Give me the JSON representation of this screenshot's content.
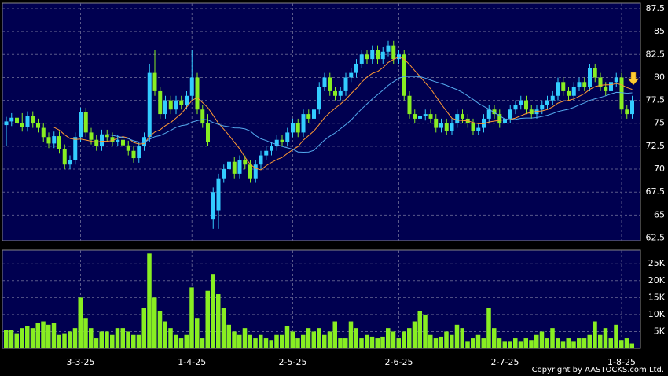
{
  "chart_data": {
    "type": "candlestick",
    "categories": [
      null,
      null,
      null,
      null,
      null,
      null,
      null,
      null,
      null,
      null,
      null,
      null,
      null,
      null,
      "3-3-25",
      null,
      null,
      null,
      null,
      null,
      null,
      null,
      null,
      null,
      null,
      null,
      null,
      null,
      null,
      null,
      null,
      null,
      null,
      null,
      null,
      "1-4-25",
      null,
      null,
      null,
      null,
      null,
      null,
      null,
      null,
      null,
      null,
      null,
      null,
      null,
      null,
      null,
      null,
      null,
      null,
      "2-5-25",
      null,
      null,
      null,
      null,
      null,
      null,
      null,
      null,
      null,
      null,
      null,
      null,
      null,
      null,
      null,
      null,
      null,
      null,
      null,
      "2-6-25",
      null,
      null,
      null,
      null,
      null,
      null,
      null,
      null,
      null,
      null,
      null,
      null,
      null,
      null,
      null,
      null,
      null,
      null,
      null,
      "2-7-25",
      null,
      null,
      null,
      null,
      null,
      null,
      null,
      null,
      null,
      null,
      null,
      null,
      null,
      null,
      null,
      null,
      null,
      null,
      null,
      null,
      null,
      "1-8-25",
      null,
      null
    ],
    "open": [
      74.8,
      75.2,
      75.6,
      75.0,
      74.6,
      75.8,
      75.0,
      74.5,
      73.5,
      72.8,
      73.6,
      72.2,
      70.5,
      71.0,
      73.5,
      76.2,
      74.0,
      73.2,
      72.5,
      73.8,
      73.5,
      73.0,
      73.2,
      72.6,
      72.0,
      71.2,
      72.5,
      73.5,
      80.5,
      78.5,
      76.0,
      77.5,
      76.5,
      77.5,
      77.0,
      78.0,
      80.0,
      76.5,
      75.0,
      64.5,
      65.5,
      69.0,
      70.0,
      70.8,
      69.5,
      71.0,
      70.5,
      69.0,
      70.5,
      71.5,
      72.0,
      72.5,
      73.2,
      73.0,
      74.0,
      75.0,
      74.0,
      76.0,
      75.5,
      76.5,
      79.0,
      80.0,
      78.5,
      78.0,
      78.5,
      80.0,
      80.5,
      81.5,
      82.5,
      82.0,
      83.0,
      82.0,
      82.8,
      83.5,
      82.0,
      82.5,
      78.0,
      76.0,
      75.5,
      75.8,
      76.0,
      75.5,
      74.5,
      75.0,
      74.2,
      75.0,
      76.0,
      75.5,
      75.0,
      74.2,
      74.5,
      75.5,
      76.5,
      76.0,
      75.0,
      75.5,
      76.5,
      77.0,
      77.5,
      76.5,
      76.0,
      76.5,
      77.0,
      77.5,
      78.0,
      79.5,
      78.5,
      78.0,
      79.0,
      79.5,
      79.0,
      81.0,
      80.0,
      79.0,
      78.5,
      79.5,
      80.0,
      76.5,
      76.0
    ],
    "high": [
      75.7,
      76.1,
      76.1,
      76.1,
      76.3,
      76.3,
      75.5,
      75.0,
      74.0,
      74.1,
      74.1,
      72.7,
      71.5,
      74.0,
      76.7,
      76.7,
      74.5,
      73.7,
      74.3,
      74.3,
      74.0,
      73.7,
      73.7,
      73.1,
      72.5,
      73.0,
      74.0,
      81.5,
      83.0,
      79.0,
      78.0,
      78.0,
      78.0,
      78.0,
      78.5,
      83.0,
      80.5,
      77.0,
      76.0,
      68.0,
      69.5,
      70.5,
      71.3,
      71.3,
      71.5,
      71.5,
      71.0,
      71.0,
      72.0,
      72.5,
      73.0,
      73.7,
      73.7,
      74.5,
      75.5,
      75.5,
      76.5,
      76.5,
      77.0,
      79.5,
      80.5,
      80.5,
      79.0,
      79.0,
      80.5,
      81.0,
      82.0,
      83.0,
      83.0,
      83.5,
      83.5,
      83.3,
      84.0,
      84.0,
      83.0,
      83.0,
      78.5,
      76.5,
      76.3,
      76.5,
      76.5,
      76.0,
      75.5,
      75.5,
      75.5,
      76.5,
      76.5,
      76.0,
      75.5,
      75.0,
      76.0,
      77.0,
      77.0,
      76.5,
      76.0,
      77.0,
      77.5,
      78.0,
      78.0,
      77.0,
      77.0,
      77.5,
      78.0,
      78.5,
      80.0,
      80.0,
      79.0,
      79.5,
      80.0,
      80.0,
      81.5,
      81.5,
      80.5,
      79.5,
      80.0,
      80.5,
      80.5,
      77.0,
      78.0
    ],
    "low": [
      72.5,
      74.7,
      74.5,
      74.1,
      74.1,
      74.5,
      74.0,
      73.0,
      72.3,
      72.3,
      71.7,
      70.0,
      70.0,
      70.5,
      73.0,
      73.5,
      72.7,
      72.0,
      72.0,
      73.0,
      72.5,
      72.5,
      72.1,
      71.5,
      70.7,
      70.7,
      72.0,
      73.0,
      78.0,
      75.5,
      75.5,
      76.0,
      76.0,
      76.5,
      76.5,
      77.5,
      76.0,
      74.5,
      72.5,
      63.5,
      63.5,
      68.5,
      69.5,
      69.0,
      69.0,
      70.0,
      68.5,
      68.5,
      70.0,
      71.0,
      71.5,
      72.0,
      72.5,
      72.5,
      73.5,
      73.5,
      73.5,
      75.0,
      75.0,
      76.0,
      78.5,
      78.0,
      77.5,
      77.5,
      78.0,
      79.5,
      80.0,
      81.0,
      81.5,
      81.5,
      81.5,
      81.5,
      82.3,
      81.5,
      81.5,
      77.5,
      75.5,
      75.0,
      75.0,
      75.3,
      75.0,
      74.0,
      74.0,
      73.7,
      73.7,
      74.5,
      75.0,
      74.5,
      73.7,
      73.7,
      74.0,
      75.0,
      75.5,
      74.5,
      74.5,
      75.0,
      76.0,
      76.5,
      76.0,
      75.5,
      75.5,
      76.0,
      76.5,
      77.0,
      77.5,
      78.0,
      77.5,
      77.5,
      78.5,
      78.5,
      78.5,
      79.5,
      78.5,
      78.0,
      78.0,
      79.0,
      76.0,
      75.5,
      75.5
    ],
    "close": [
      75.2,
      75.6,
      75.0,
      74.6,
      75.8,
      75.0,
      74.5,
      73.5,
      72.8,
      73.6,
      72.2,
      70.5,
      71.0,
      73.5,
      76.2,
      74.0,
      73.2,
      72.5,
      73.8,
      73.5,
      73.0,
      73.2,
      72.6,
      72.0,
      71.2,
      72.5,
      73.5,
      80.5,
      78.5,
      76.0,
      77.5,
      76.5,
      77.5,
      77.0,
      78.0,
      80.0,
      76.5,
      75.0,
      73.0,
      67.5,
      69.0,
      70.0,
      70.8,
      69.5,
      71.0,
      70.5,
      69.0,
      70.5,
      71.5,
      72.0,
      72.5,
      73.2,
      73.0,
      74.0,
      75.0,
      74.0,
      76.0,
      75.5,
      76.5,
      79.0,
      80.0,
      78.5,
      78.0,
      78.5,
      80.0,
      80.5,
      81.5,
      82.5,
      82.0,
      83.0,
      82.0,
      82.8,
      83.5,
      82.0,
      82.5,
      78.0,
      76.0,
      75.5,
      75.8,
      76.0,
      75.5,
      74.5,
      75.0,
      74.2,
      75.0,
      76.0,
      75.5,
      75.0,
      74.2,
      74.5,
      75.5,
      76.5,
      76.0,
      75.0,
      75.5,
      76.5,
      77.0,
      77.5,
      76.5,
      76.0,
      76.5,
      77.0,
      77.5,
      78.0,
      79.5,
      78.5,
      78.0,
      79.0,
      79.5,
      79.0,
      81.0,
      80.0,
      79.0,
      78.5,
      79.5,
      80.0,
      76.5,
      76.0,
      77.5
    ],
    "ylim": [
      62.2,
      88.1
    ],
    "yticks": [
      62.5,
      65,
      67.5,
      70,
      72.5,
      75,
      77.5,
      80,
      82.5,
      85,
      87.5
    ],
    "up_color": "#33ccff",
    "down_color": "#88ee22",
    "ma_periods": [
      10,
      20
    ],
    "ma_colors": [
      "#ff9933",
      "#55aaee"
    ],
    "grid": true,
    "volume": {
      "values": [
        5500,
        5500,
        4500,
        6000,
        6500,
        6000,
        7500,
        8000,
        7000,
        7500,
        4000,
        4500,
        5000,
        6000,
        15000,
        9000,
        6000,
        3000,
        5000,
        5000,
        4000,
        6000,
        6000,
        5000,
        4000,
        4000,
        12000,
        28000,
        15000,
        11000,
        8000,
        6000,
        4000,
        3000,
        4000,
        18000,
        9000,
        3000,
        17000,
        22000,
        16000,
        12000,
        7000,
        5000,
        4000,
        6000,
        4000,
        3000,
        4000,
        3000,
        2500,
        4000,
        4000,
        6500,
        5000,
        3000,
        4000,
        6000,
        5000,
        6000,
        4000,
        5000,
        8000,
        3000,
        3000,
        8000,
        6000,
        3000,
        4000,
        3500,
        3000,
        3500,
        6000,
        5000,
        3000,
        5000,
        6000,
        8000,
        11000,
        10000,
        4000,
        3000,
        3500,
        5000,
        4000,
        7000,
        6000,
        2000,
        3000,
        4000,
        3000,
        12000,
        6000,
        3000,
        2000,
        2000,
        3000,
        2000,
        3000,
        2500,
        4000,
        5000,
        3000,
        6000,
        3000,
        2000,
        3000,
        2000,
        3000,
        3000,
        4000,
        8000,
        4000,
        6000,
        3000,
        7000,
        2500,
        3000,
        1500
      ],
      "color": "#88ee22",
      "ylim": [
        0,
        29000
      ],
      "yticks": [
        {
          "value": 5000,
          "label": "5K"
        },
        {
          "value": 10000,
          "label": "10K"
        },
        {
          "value": 15000,
          "label": "15K"
        },
        {
          "value": 20000,
          "label": "20K"
        },
        {
          "value": 25000,
          "label": "25K"
        }
      ]
    }
  },
  "footer": "Copyright by AASTOCKS.com Ltd."
}
